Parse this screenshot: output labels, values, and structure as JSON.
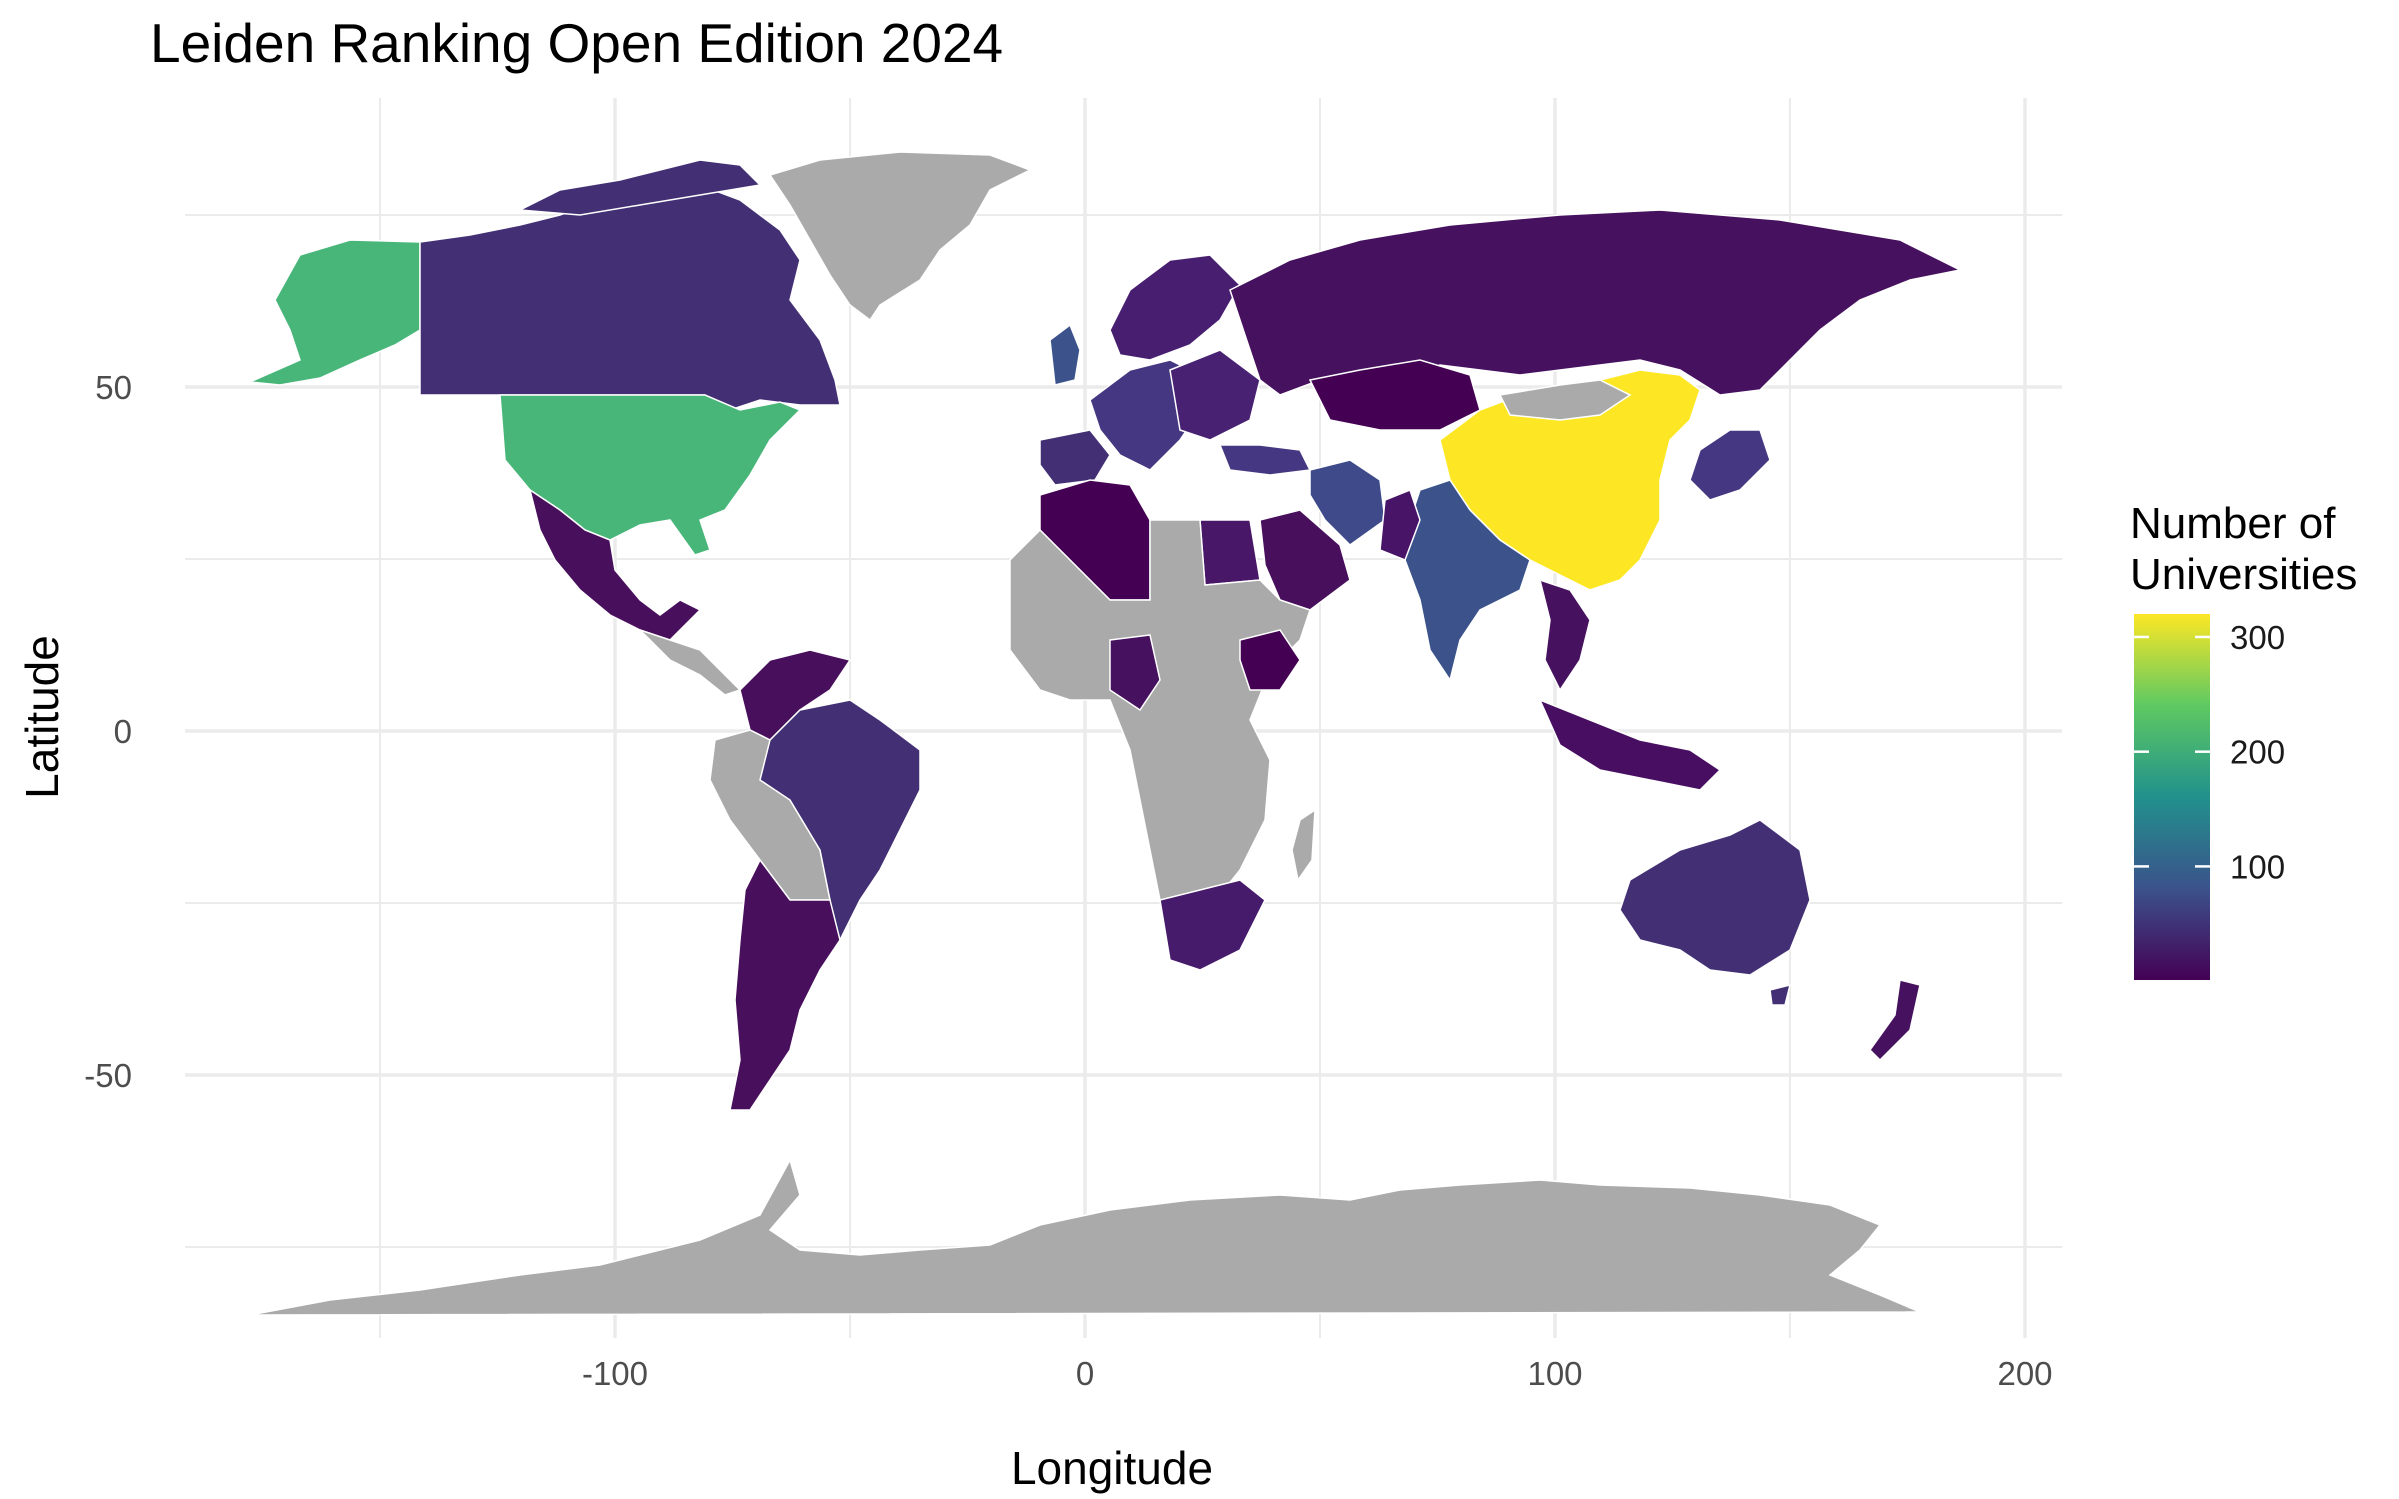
{
  "chart_data": {
    "type": "choropleth",
    "title": "Leiden Ranking Open Edition 2024",
    "xlabel": "Longitude",
    "ylabel": "Latitude",
    "x_ticks": [
      "-100",
      "0",
      "100",
      "200"
    ],
    "y_ticks": [
      "50",
      "0",
      "-50"
    ],
    "xlim": [
      -190,
      210
    ],
    "ylim": [
      -88,
      92
    ],
    "grid": true,
    "legend": {
      "title_line1": "Number of",
      "title_line2": "Universities",
      "ticks": [
        "300",
        "200",
        "100"
      ],
      "tick_values": [
        300,
        200,
        100
      ],
      "range": [
        1,
        320
      ],
      "palette": [
        "#440154",
        "#3b528b",
        "#21918c",
        "#5ec962",
        "#fde725"
      ],
      "position": "right"
    },
    "missing_color": "#aaaaaa",
    "regions": [
      {
        "name": "China",
        "value": 320
      },
      {
        "name": "United States",
        "value": 205
      },
      {
        "name": "India",
        "value": 70
      },
      {
        "name": "Japan",
        "value": 60
      },
      {
        "name": "United Kingdom",
        "value": 60
      },
      {
        "name": "Germany",
        "value": 55
      },
      {
        "name": "Iran",
        "value": 50
      },
      {
        "name": "Turkey",
        "value": 50
      },
      {
        "name": "Brazil",
        "value": 45
      },
      {
        "name": "Canada",
        "value": 35
      },
      {
        "name": "Australia",
        "value": 35
      },
      {
        "name": "Italy",
        "value": 45
      },
      {
        "name": "Spain",
        "value": 45
      },
      {
        "name": "France",
        "value": 40
      },
      {
        "name": "South Korea",
        "value": 45
      },
      {
        "name": "Russia",
        "value": 15
      },
      {
        "name": "Poland",
        "value": 25
      },
      {
        "name": "Mexico",
        "value": 8
      },
      {
        "name": "Argentina",
        "value": 5
      },
      {
        "name": "Colombia",
        "value": 5
      },
      {
        "name": "Chile",
        "value": 7
      },
      {
        "name": "South Africa",
        "value": 10
      },
      {
        "name": "Egypt",
        "value": 15
      },
      {
        "name": "Saudi Arabia",
        "value": 10
      },
      {
        "name": "Pakistan",
        "value": 15
      },
      {
        "name": "Indonesia",
        "value": 8
      },
      {
        "name": "Malaysia",
        "value": 8
      },
      {
        "name": "Thailand",
        "value": 6
      },
      {
        "name": "Vietnam",
        "value": 3
      },
      {
        "name": "Kazakhstan",
        "value": 2
      },
      {
        "name": "Algeria",
        "value": 3
      },
      {
        "name": "Nigeria",
        "value": 4
      },
      {
        "name": "Ethiopia",
        "value": 2
      },
      {
        "name": "New Zealand",
        "value": 6
      },
      {
        "name": "Sweden",
        "value": 12
      },
      {
        "name": "Norway",
        "value": 6
      },
      {
        "name": "Finland",
        "value": 6
      }
    ]
  }
}
